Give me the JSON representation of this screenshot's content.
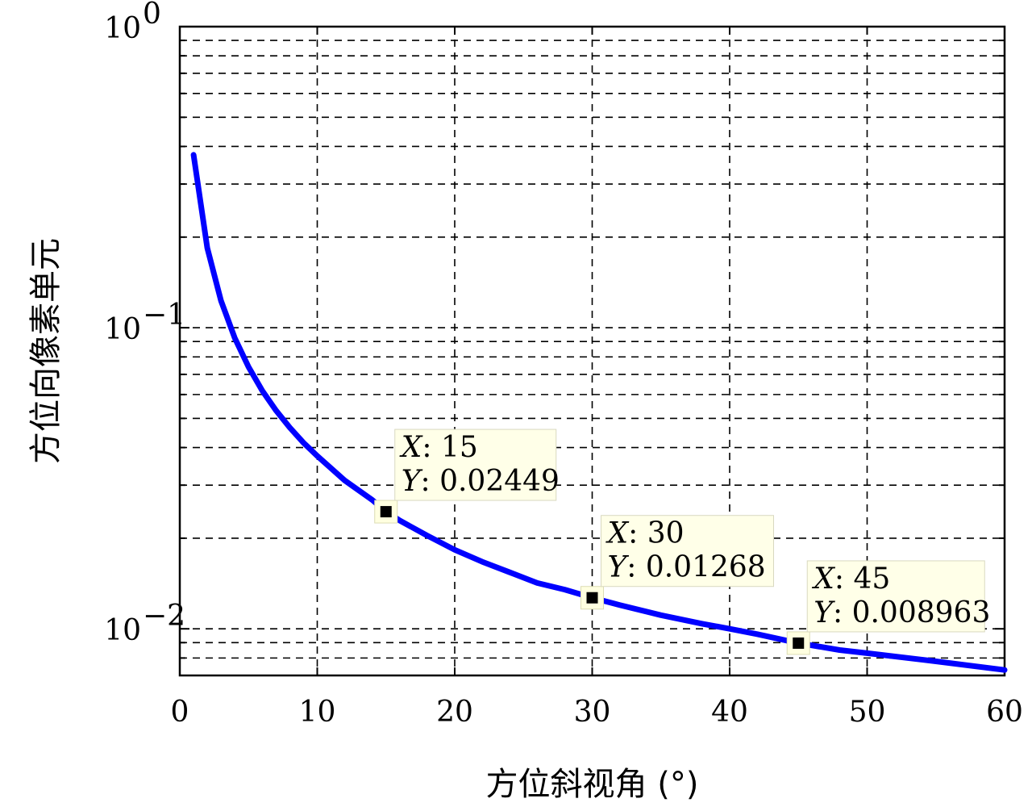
{
  "chart_data": {
    "type": "line",
    "xlabel": "方位斜视角 (°)",
    "ylabel": "方位向像素单元",
    "xlim": [
      0,
      60
    ],
    "ylim": [
      0.007,
      1
    ],
    "yscale": "log",
    "grid": true,
    "grid_style": "dashed",
    "line_color": "#0000ff",
    "x_ticks": [
      0,
      10,
      20,
      30,
      40,
      50,
      60
    ],
    "x_tick_labels": [
      "0",
      "10",
      "20",
      "30",
      "40",
      "50",
      "60"
    ],
    "y_ticks": [
      {
        "value": 1,
        "base": "10",
        "exp": "0"
      },
      {
        "value": 0.1,
        "base": "10",
        "exp": "−1"
      },
      {
        "value": 0.01,
        "base": "10",
        "exp": "−2"
      }
    ],
    "series": [
      {
        "x": [
          1,
          2,
          3,
          4,
          5,
          6,
          7,
          8,
          9,
          10,
          12,
          14,
          15,
          16,
          18,
          20,
          22,
          24,
          26,
          28,
          30,
          32,
          35,
          38,
          40,
          42,
          45,
          48,
          50,
          55,
          60
        ],
        "y": [
          0.375,
          0.184,
          0.123,
          0.0924,
          0.0741,
          0.0618,
          0.0531,
          0.0466,
          0.0415,
          0.0375,
          0.0311,
          0.0268,
          0.02449,
          0.0229,
          0.0204,
          0.0183,
          0.0167,
          0.0154,
          0.0142,
          0.0135,
          0.01268,
          0.012,
          0.0111,
          0.0104,
          0.01,
          0.0096,
          0.008963,
          0.0085,
          0.0083,
          0.0078,
          0.0073
        ]
      }
    ],
    "datatips": [
      {
        "x": 15,
        "y": 0.02449,
        "x_label": "X",
        "x_text": ": 15",
        "y_label": "Y",
        "y_text": ": 0.02449"
      },
      {
        "x": 30,
        "y": 0.01268,
        "x_label": "X",
        "x_text": ": 30",
        "y_label": "Y",
        "y_text": ": 0.01268"
      },
      {
        "x": 45,
        "y": 0.008963,
        "x_label": "X",
        "x_text": ": 45",
        "y_label": "Y",
        "y_text": ": 0.008963"
      }
    ]
  }
}
